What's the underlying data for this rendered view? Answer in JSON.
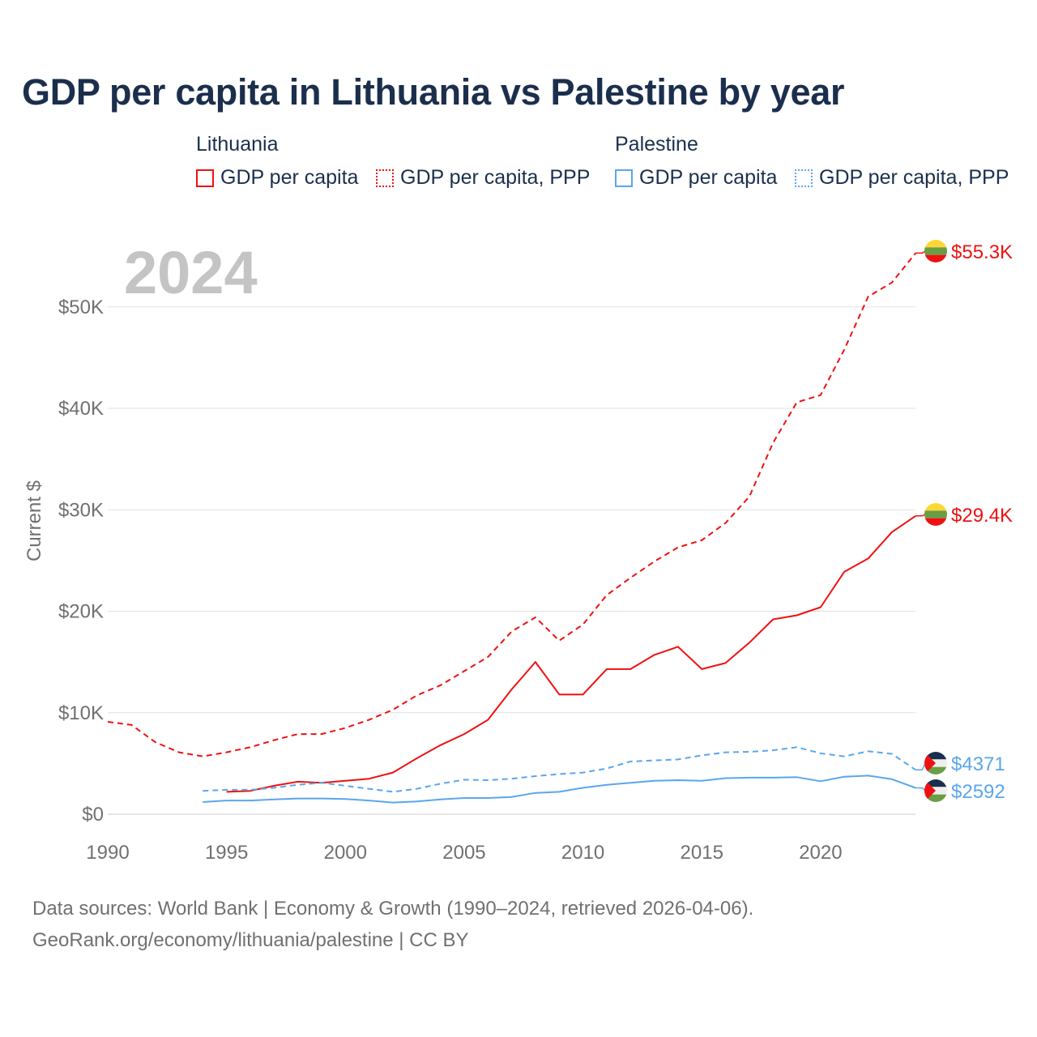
{
  "title": "GDP per capita in Lithuania vs Palestine by year",
  "legend": {
    "groups": [
      {
        "country": "Lithuania",
        "items": [
          "GDP per capita",
          "GDP per capita, PPP"
        ],
        "color": "#ee1111"
      },
      {
        "country": "Palestine",
        "items": [
          "GDP per capita",
          "GDP per capita, PPP"
        ],
        "color": "#5aa6ec"
      }
    ]
  },
  "year_label": "2024",
  "footer": {
    "line1": "Data sources: World Bank | Economy & Growth (1990–2024, retrieved 2026-04-06).",
    "line2": "GeoRank.org/economy/lithuania/palestine | CC BY"
  },
  "chart_data": {
    "type": "line",
    "title": "GDP per capita in Lithuania vs Palestine by year",
    "xlabel": "",
    "ylabel": "Current $",
    "xlim": [
      1990,
      2024
    ],
    "ylim": [
      0,
      55300
    ],
    "x_ticks": [
      1990,
      1995,
      2000,
      2005,
      2010,
      2015,
      2020
    ],
    "y_ticks": [
      0,
      10000,
      20000,
      30000,
      40000,
      50000
    ],
    "y_tick_labels": [
      "$0",
      "$10K",
      "$20K",
      "$30K",
      "$40K",
      "$50K"
    ],
    "grid": true,
    "series": [
      {
        "name": "Lithuania GDP per capita, PPP",
        "color": "#ee1111",
        "dashed": true,
        "end_label": "$55.3K",
        "flag": "lithuania",
        "x": [
          1990,
          1991,
          1992,
          1993,
          1994,
          1995,
          1996,
          1997,
          1998,
          1999,
          2000,
          2001,
          2002,
          2003,
          2004,
          2005,
          2006,
          2007,
          2008,
          2009,
          2010,
          2011,
          2012,
          2013,
          2014,
          2015,
          2016,
          2017,
          2018,
          2019,
          2020,
          2021,
          2022,
          2023,
          2024
        ],
        "values": [
          9100,
          8800,
          7100,
          6100,
          5700,
          6100,
          6600,
          7300,
          7900,
          7900,
          8500,
          9300,
          10300,
          11700,
          12700,
          14100,
          15500,
          18000,
          19400,
          17100,
          18700,
          21600,
          23300,
          24900,
          26300,
          27000,
          28700,
          31300,
          36600,
          40600,
          41300,
          45800,
          51000,
          52400,
          55300
        ]
      },
      {
        "name": "Lithuania GDP per capita",
        "color": "#ee1111",
        "dashed": false,
        "end_label": "$29.4K",
        "flag": "lithuania",
        "x": [
          1995,
          1996,
          1997,
          1998,
          1999,
          2000,
          2001,
          2002,
          2003,
          2004,
          2005,
          2006,
          2007,
          2008,
          2009,
          2010,
          2011,
          2012,
          2013,
          2014,
          2015,
          2016,
          2017,
          2018,
          2019,
          2020,
          2021,
          2022,
          2023,
          2024
        ],
        "values": [
          2200,
          2300,
          2800,
          3200,
          3100,
          3300,
          3500,
          4100,
          5500,
          6800,
          7900,
          9300,
          12300,
          15000,
          11800,
          11800,
          14300,
          14300,
          15700,
          16500,
          14300,
          14900,
          16900,
          19200,
          19600,
          20400,
          23900,
          25200,
          27800,
          29400
        ]
      },
      {
        "name": "Palestine GDP per capita, PPP",
        "color": "#5aa6ec",
        "dashed": true,
        "end_label": "$4371",
        "flag": "palestine",
        "x": [
          1994,
          1995,
          1996,
          1997,
          1998,
          1999,
          2000,
          2001,
          2002,
          2003,
          2004,
          2005,
          2006,
          2007,
          2008,
          2009,
          2010,
          2011,
          2012,
          2013,
          2014,
          2015,
          2016,
          2017,
          2018,
          2019,
          2020,
          2021,
          2022,
          2023,
          2024
        ],
        "values": [
          2300,
          2400,
          2400,
          2600,
          2900,
          3100,
          2800,
          2500,
          2200,
          2500,
          3000,
          3400,
          3350,
          3500,
          3750,
          3950,
          4100,
          4500,
          5200,
          5300,
          5400,
          5800,
          6100,
          6150,
          6300,
          6600,
          6000,
          5700,
          6200,
          5950,
          4371
        ]
      },
      {
        "name": "Palestine GDP per capita",
        "color": "#5aa6ec",
        "dashed": false,
        "end_label": "$2592",
        "flag": "palestine",
        "x": [
          1994,
          1995,
          1996,
          1997,
          1998,
          1999,
          2000,
          2001,
          2002,
          2003,
          2004,
          2005,
          2006,
          2007,
          2008,
          2009,
          2010,
          2011,
          2012,
          2013,
          2014,
          2015,
          2016,
          2017,
          2018,
          2019,
          2020,
          2021,
          2022,
          2023,
          2024
        ],
        "values": [
          1200,
          1350,
          1350,
          1450,
          1550,
          1550,
          1500,
          1350,
          1150,
          1250,
          1450,
          1600,
          1600,
          1700,
          2100,
          2200,
          2600,
          2900,
          3100,
          3300,
          3350,
          3300,
          3550,
          3600,
          3600,
          3650,
          3250,
          3700,
          3800,
          3450,
          2592
        ]
      }
    ]
  }
}
